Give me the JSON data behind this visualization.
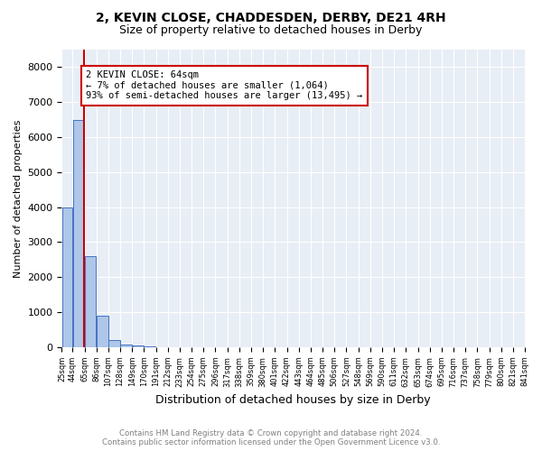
{
  "title": "2, KEVIN CLOSE, CHADDESDEN, DERBY, DE21 4RH",
  "subtitle": "Size of property relative to detached houses in Derby",
  "xlabel": "Distribution of detached houses by size in Derby",
  "ylabel": "Number of detached properties",
  "annotation_line1": "2 KEVIN CLOSE: 64sqm",
  "annotation_line2": "← 7% of detached houses are smaller (1,064)",
  "annotation_line3": "93% of semi-detached houses are larger (13,495) →",
  "footer1": "Contains HM Land Registry data © Crown copyright and database right 2024.",
  "footer2": "Contains public sector information licensed under the Open Government Licence v3.0.",
  "property_size": 64,
  "bar_edges": [
    25,
    44,
    65,
    86,
    107,
    128,
    149,
    170,
    191,
    212,
    233,
    254,
    275,
    296,
    317,
    338,
    359,
    380,
    401,
    422,
    443,
    464,
    485,
    506,
    527,
    548,
    569,
    590,
    611,
    632,
    653,
    674,
    695,
    716,
    737,
    758,
    779,
    800,
    821,
    841
  ],
  "bar_labels": [
    "25sqm",
    "44sqm",
    "65sqm",
    "86sqm",
    "107sqm",
    "128sqm",
    "149sqm",
    "170sqm",
    "191sqm",
    "212sqm",
    "233sqm",
    "254sqm",
    "275sqm",
    "296sqm",
    "317sqm",
    "338sqm",
    "359sqm",
    "380sqm",
    "401sqm",
    "422sqm",
    "443sqm",
    "464sqm",
    "485sqm",
    "506sqm",
    "527sqm",
    "548sqm",
    "569sqm",
    "590sqm",
    "611sqm",
    "632sqm",
    "653sqm",
    "674sqm",
    "695sqm",
    "716sqm",
    "737sqm",
    "758sqm",
    "779sqm",
    "800sqm",
    "821sqm",
    "841sqm"
  ],
  "bar_heights": [
    4000,
    6500,
    2600,
    900,
    200,
    80,
    40,
    20,
    10,
    5,
    5,
    5,
    5,
    5,
    5,
    5,
    2,
    2,
    2,
    2,
    2,
    2,
    2,
    2,
    2,
    2,
    2,
    2,
    2,
    2,
    2,
    2,
    2,
    2,
    2,
    2,
    2,
    2,
    2
  ],
  "bar_color": "#aec6e8",
  "bar_edge_color": "#4472c4",
  "red_line_color": "#cc0000",
  "annotation_box_color": "#cc0000",
  "background_color": "#ffffff",
  "plot_background": "#e8eef5",
  "grid_color": "#ffffff",
  "ylim": [
    0,
    8500
  ],
  "yticks": [
    0,
    1000,
    2000,
    3000,
    4000,
    5000,
    6000,
    7000,
    8000
  ]
}
